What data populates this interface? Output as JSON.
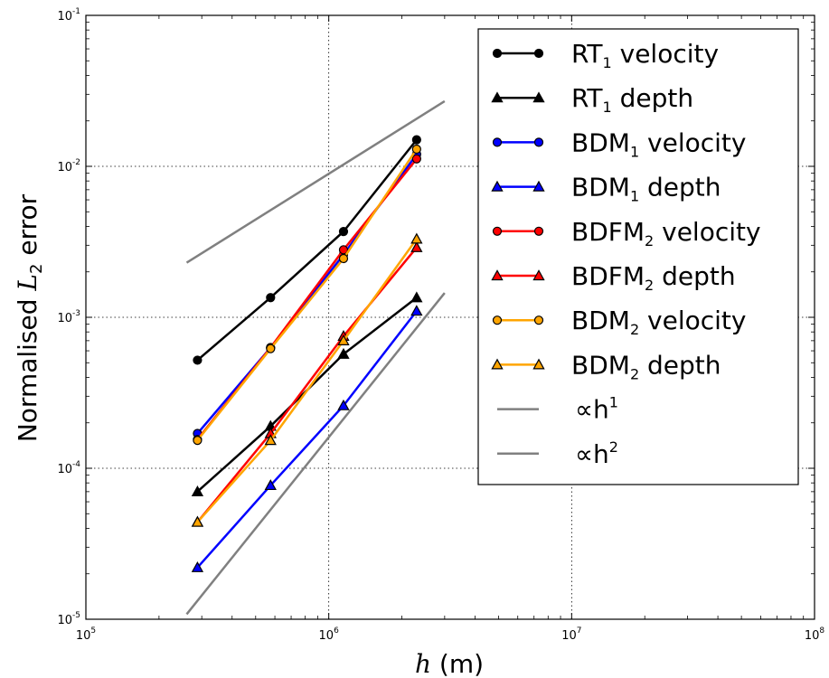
{
  "chart_data": {
    "type": "line",
    "x_scale": "log",
    "y_scale": "log",
    "xlim": [
      100000,
      100000000
    ],
    "ylim": [
      1e-05,
      0.1
    ],
    "grid": true,
    "legend_position": "top-right",
    "xlabel": {
      "var": "h",
      "rest": " (m)"
    },
    "ylabel": {
      "pre": "Normalised ",
      "var": "L",
      "sub": "2",
      "post": " error"
    },
    "x_ticks": [
      {
        "value": 100000,
        "base": "10",
        "exp": "5"
      },
      {
        "value": 1000000,
        "base": "10",
        "exp": "6"
      },
      {
        "value": 10000000,
        "base": "10",
        "exp": "7"
      },
      {
        "value": 100000000,
        "base": "10",
        "exp": "8"
      }
    ],
    "y_ticks": [
      {
        "value": 1e-05,
        "base": "10",
        "exp": "-5"
      },
      {
        "value": 0.0001,
        "base": "10",
        "exp": "-4"
      },
      {
        "value": 0.001,
        "base": "10",
        "exp": "-3"
      },
      {
        "value": 0.01,
        "base": "10",
        "exp": "-2"
      },
      {
        "value": 0.1,
        "base": "10",
        "exp": "-1"
      }
    ],
    "series": [
      {
        "name": "RT1 velocity",
        "label": {
          "main": "RT",
          "sub": "1",
          "rest": " velocity"
        },
        "color": "#000000",
        "marker": "circle",
        "x": [
          288000,
          576000,
          1150000,
          2300000
        ],
        "y": [
          0.00052,
          0.00135,
          0.0037,
          0.015
        ]
      },
      {
        "name": "RT1 depth",
        "label": {
          "main": "RT",
          "sub": "1",
          "rest": " depth"
        },
        "color": "#000000",
        "marker": "triangle",
        "x": [
          288000,
          576000,
          1150000,
          2300000
        ],
        "y": [
          7e-05,
          0.00019,
          0.00057,
          0.00135
        ]
      },
      {
        "name": "BDM1 velocity",
        "label": {
          "main": "BDM",
          "sub": "1",
          "rest": " velocity"
        },
        "color": "#0000ff",
        "marker": "circle",
        "x": [
          288000,
          576000,
          1150000,
          2300000
        ],
        "y": [
          0.00017,
          0.00063,
          0.0026,
          0.012
        ]
      },
      {
        "name": "BDM1 depth",
        "label": {
          "main": "BDM",
          "sub": "1",
          "rest": " depth"
        },
        "color": "#0000ff",
        "marker": "triangle",
        "x": [
          288000,
          576000,
          1150000,
          2300000
        ],
        "y": [
          2.2e-05,
          7.7e-05,
          0.00026,
          0.0011
        ]
      },
      {
        "name": "BDFM2 velocity",
        "label": {
          "main": "BDFM",
          "sub": "2",
          "rest": " velocity"
        },
        "color": "#ff0000",
        "marker": "circle",
        "x": [
          288000,
          576000,
          1150000,
          2300000
        ],
        "y": [
          0.000155,
          0.00063,
          0.0028,
          0.0112
        ]
      },
      {
        "name": "BDFM2 depth",
        "label": {
          "main": "BDFM",
          "sub": "2",
          "rest": " depth"
        },
        "color": "#ff0000",
        "marker": "triangle",
        "x": [
          288000,
          576000,
          1150000,
          2300000
        ],
        "y": [
          4.4e-05,
          0.00017,
          0.00075,
          0.0029
        ]
      },
      {
        "name": "BDM2 velocity",
        "label": {
          "main": "BDM",
          "sub": "2",
          "rest": " velocity"
        },
        "color": "#ffa500",
        "marker": "circle",
        "x": [
          288000,
          576000,
          1150000,
          2300000
        ],
        "y": [
          0.000153,
          0.00062,
          0.00245,
          0.013
        ]
      },
      {
        "name": "BDM2 depth",
        "label": {
          "main": "BDM",
          "sub": "2",
          "rest": " depth"
        },
        "color": "#ffa500",
        "marker": "triangle",
        "x": [
          288000,
          576000,
          1150000,
          2300000
        ],
        "y": [
          4.4e-05,
          0.000153,
          0.0007,
          0.0033
        ]
      }
    ],
    "reference_lines": [
      {
        "name": "∝h1",
        "label": {
          "main": "∝h",
          "sup": "1"
        },
        "color": "#808080",
        "x": [
          260000,
          3000000
        ],
        "y": [
          0.0023,
          0.027
        ]
      },
      {
        "name": "∝h2",
        "label": {
          "main": "∝h",
          "sup": "2"
        },
        "color": "#808080",
        "x": [
          260000,
          3000000
        ],
        "y": [
          1.08e-05,
          0.00145
        ]
      }
    ]
  }
}
